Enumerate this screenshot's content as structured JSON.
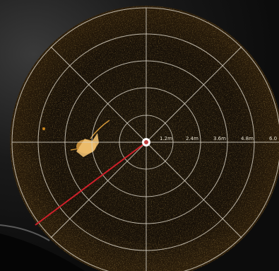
{
  "sonar": {
    "mode": "scanning-sonar",
    "range_labels": [
      "1.2m",
      "2.4m",
      "3.6m",
      "4.8m",
      "6.0"
    ],
    "colors": {
      "echo": "#c8841e",
      "echo_dim": "#3a2a10",
      "screen": "#140f08",
      "grid": "#d8d2c4",
      "beam": "#d0202a",
      "outside_screen": "#1a1a1a"
    },
    "icons": {
      "center": "transducer-icon"
    }
  }
}
